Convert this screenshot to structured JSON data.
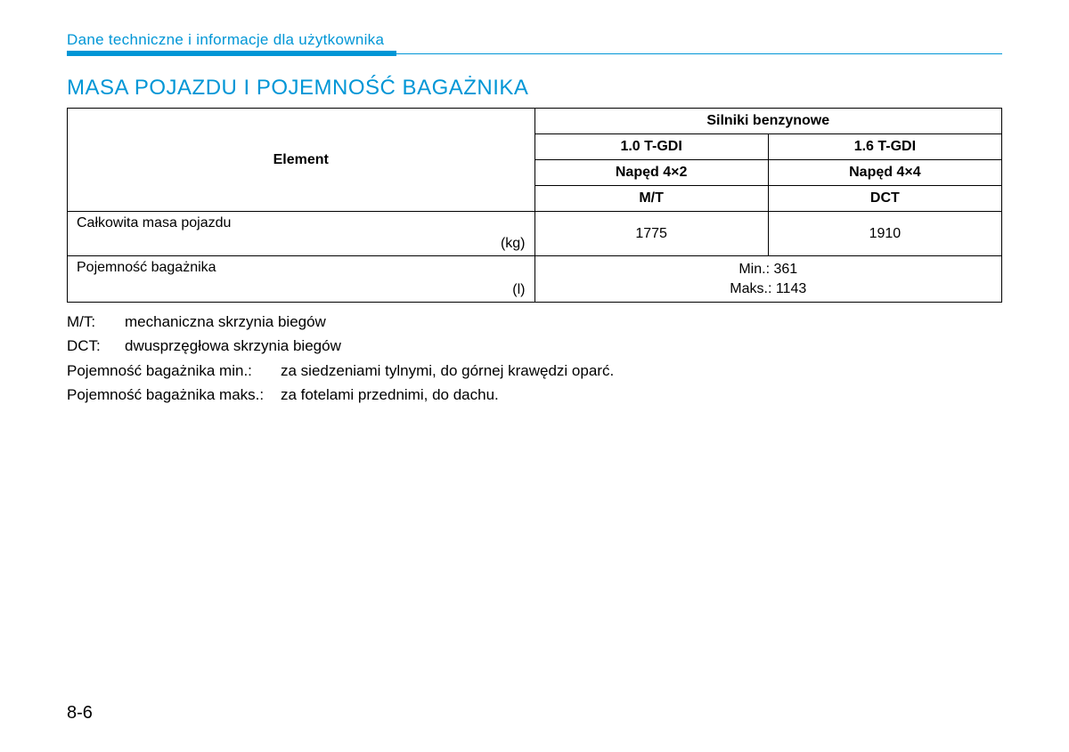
{
  "colors": {
    "accent": "#0096d6",
    "text": "#000000",
    "border": "#000000",
    "background": "#ffffff"
  },
  "header": {
    "breadcrumb": "Dane techniczne i informacje dla użytkownika"
  },
  "section": {
    "title": "MASA POJAZDU I POJEMNOŚĆ BAGAŻNIKA"
  },
  "table": {
    "col_widths_pct": [
      50,
      25,
      25
    ],
    "headers": {
      "element": "Element",
      "engines_group": "Silniki benzynowe",
      "col1_engine": "1.0 T-GDI",
      "col2_engine": "1.6 T-GDI",
      "col1_drive": "Napęd 4×2",
      "col2_drive": "Napęd 4×4",
      "col1_trans": "M/T",
      "col2_trans": "DCT"
    },
    "rows": [
      {
        "label": "Całkowita masa pojazdu",
        "unit": "(kg)",
        "col1": "1775",
        "col2": "1910"
      },
      {
        "label": "Pojemność bagażnika",
        "unit": "(l)",
        "merged_line1": "Min.: 361",
        "merged_line2": "Maks.: 1143"
      }
    ]
  },
  "notes": [
    {
      "term_class": "short",
      "term": "M/T:",
      "def": "mechaniczna skrzynia biegów"
    },
    {
      "term_class": "short",
      "term": "DCT:",
      "def": "dwusprzęgłowa skrzynia biegów"
    },
    {
      "term_class": "long",
      "term": "Pojemność bagażnika min.:",
      "def": "za siedzeniami tylnymi, do górnej krawędzi oparć."
    },
    {
      "term_class": "long",
      "term": "Pojemność bagażnika maks.:",
      "def": "za fotelami przednimi, do dachu."
    }
  ],
  "page_number": "8-6"
}
